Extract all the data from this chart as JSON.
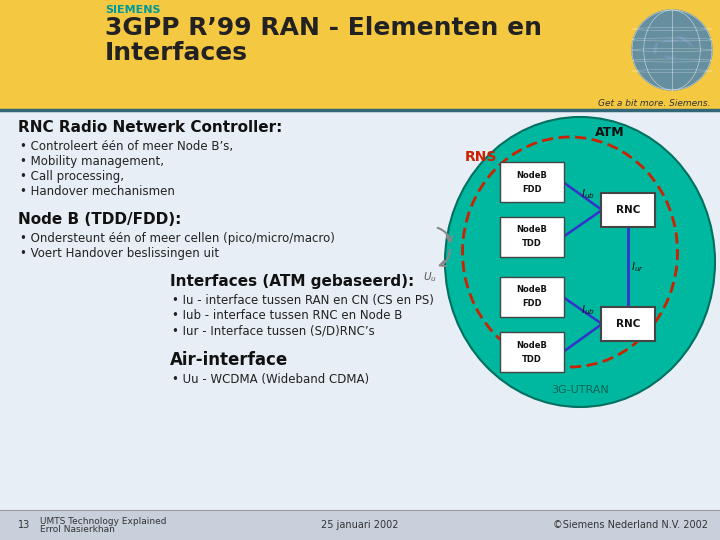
{
  "bg_color": "#e8eef5",
  "header_bg": "#f5c842",
  "footer_bg": "#c8d0dc",
  "siemens_color": "#009999",
  "siemens_label": "SIEMENS",
  "title_text_line1": "3GPP R’99 RAN - Elementen en",
  "title_text_line2": "Interfaces",
  "tagline": "Get a bit more. Siemens.",
  "dark_line_color": "#336677",
  "section1_title": "RNC Radio Netwerk Controller:",
  "section1_bullets": [
    "• Controleert één of meer Node B’s,",
    "• Mobility management,",
    "• Call processing,",
    "• Handover mechanismen"
  ],
  "section2_title": "Node B (TDD/FDD):",
  "section2_bullets": [
    "• Ondersteunt één of meer cellen (pico/micro/macro)",
    "• Voert Handover beslissingen uit"
  ],
  "section3_title": "Interfaces (ATM gebaseerd):",
  "section3_bullets": [
    "• Iu - interface tussen RAN en CN (CS en PS)",
    "• Iub - interface tussen RNC en Node B",
    "• Iur - Interface tussen (S/D)RNC’s"
  ],
  "section4_title": "Air-interface",
  "section4_bullets": [
    "• Uu - WCDMA (Wideband CDMA)"
  ],
  "footer_center": "25 januari 2002",
  "footer_right": "©Siemens Nederland N.V. 2002",
  "diagram_fill": "#00b8a0",
  "rns_dashed_color": "#cc2200",
  "nodeb_fill": "#ffffff",
  "nodeb_edge": "#444444",
  "rnc_fill": "#ffffff",
  "rnc_edge": "#444444",
  "line_blue": "#3333cc",
  "uu_gray": "#888888",
  "atm_text_color": "#111111",
  "rns_text_color": "#cc2200",
  "utran_text_color": "#006655"
}
